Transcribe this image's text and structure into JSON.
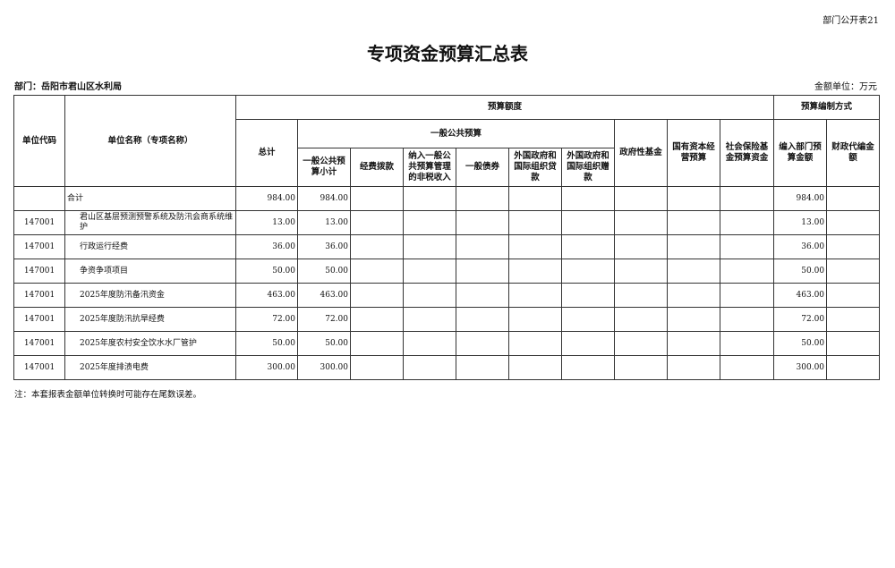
{
  "form_tag": "部门公开表21",
  "title": "专项资金预算汇总表",
  "department": "部门：岳阳市君山区水利局",
  "unit": "金额单位：万元",
  "headers": {
    "code": "单位代码",
    "name": "单位名称（专项名称）",
    "budget_amount": "预算额度",
    "method": "预算编制方式",
    "total": "总计",
    "general_public": "一般公共预算",
    "gp_subtotal": "一般公共预算小计",
    "appropriation": "经费拨款",
    "nontax": "纳入一般公共预算管理的非税收入",
    "bonds": "一般债券",
    "foreign_loans": "外国政府和国际组织贷款",
    "foreign_grants": "外国政府和国际组织赠款",
    "gov_fund": "政府性基金",
    "state_capital": "国有资本经营预算",
    "social_insurance": "社会保险基金预算资金",
    "dept_budget": "编入部门预算金额",
    "fiscal_agency": "财政代编金额"
  },
  "rows": [
    {
      "code": "",
      "name": "合计",
      "total": "984.00",
      "gp_subtotal": "984.00",
      "dept_budget": "984.00"
    },
    {
      "code": "147001",
      "name": "君山区基层预测预警系统及防汛会商系统维护",
      "total": "13.00",
      "gp_subtotal": "13.00",
      "dept_budget": "13.00"
    },
    {
      "code": "147001",
      "name": "行政运行经费",
      "total": "36.00",
      "gp_subtotal": "36.00",
      "dept_budget": "36.00"
    },
    {
      "code": "147001",
      "name": "争资争项项目",
      "total": "50.00",
      "gp_subtotal": "50.00",
      "dept_budget": "50.00"
    },
    {
      "code": "147001",
      "name": "2025年度防汛备汛资金",
      "total": "463.00",
      "gp_subtotal": "463.00",
      "dept_budget": "463.00"
    },
    {
      "code": "147001",
      "name": "2025年度防汛抗旱经费",
      "total": "72.00",
      "gp_subtotal": "72.00",
      "dept_budget": "72.00"
    },
    {
      "code": "147001",
      "name": "2025年度农村安全饮水水厂管护",
      "total": "50.00",
      "gp_subtotal": "50.00",
      "dept_budget": "50.00"
    },
    {
      "code": "147001",
      "name": "2025年度排渍电费",
      "total": "300.00",
      "gp_subtotal": "300.00",
      "dept_budget": "300.00"
    }
  ],
  "note": "注：本套报表金额单位转换时可能存在尾数误差。"
}
